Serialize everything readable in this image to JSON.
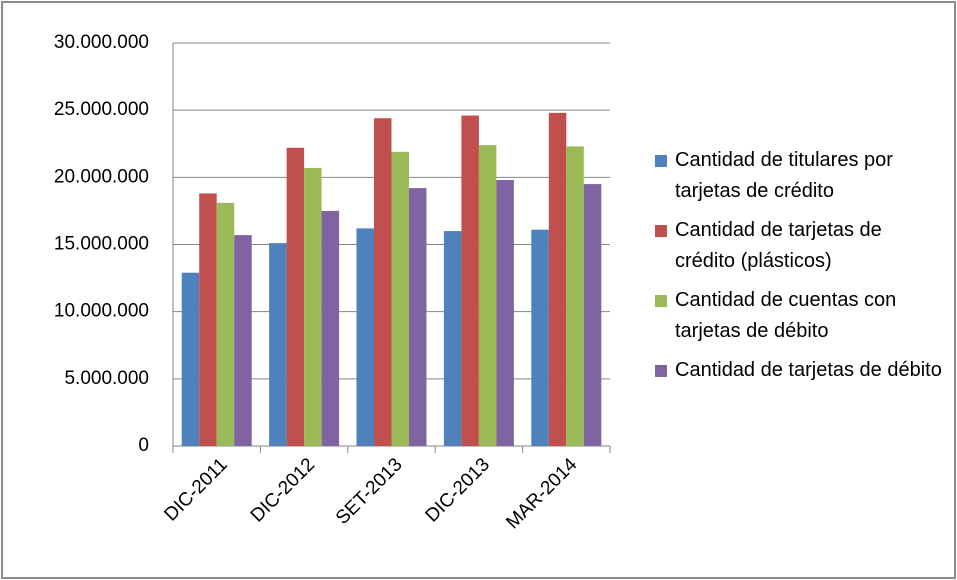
{
  "chart_data": {
    "type": "bar",
    "categories": [
      "DIC-2011",
      "DIC-2012",
      "SET-2013",
      "DIC-2013",
      "MAR-2014"
    ],
    "series": [
      {
        "name": "Cantidad de titulares por tarjetas de crédito",
        "color": "#4f81bd",
        "values": [
          12900000,
          15100000,
          16200000,
          16000000,
          16100000
        ]
      },
      {
        "name": "Cantidad de tarjetas de crédito (plásticos)",
        "color": "#c0504d",
        "values": [
          18800000,
          22200000,
          24400000,
          24600000,
          24800000
        ]
      },
      {
        "name": "Cantidad de cuentas con tarjetas de débito",
        "color": "#9bbb59",
        "values": [
          18100000,
          20700000,
          21900000,
          22400000,
          22300000
        ]
      },
      {
        "name": "Cantidad de tarjetas de débito",
        "color": "#8064a2",
        "values": [
          15700000,
          17500000,
          19200000,
          19800000,
          19500000
        ]
      }
    ],
    "ylim": [
      0,
      30000000
    ],
    "yticks": [
      0,
      {
        "value": 5000000,
        "label": "5.000.000"
      },
      {
        "value": 10000000,
        "label": "10.000.000"
      },
      {
        "value": 15000000,
        "label": "15.000.000"
      },
      {
        "value": 20000000,
        "label": "20.000.000"
      },
      {
        "value": 25000000,
        "label": "25.000.000"
      },
      {
        "value": 30000000,
        "label": "30.000.000"
      }
    ],
    "grid": true
  }
}
